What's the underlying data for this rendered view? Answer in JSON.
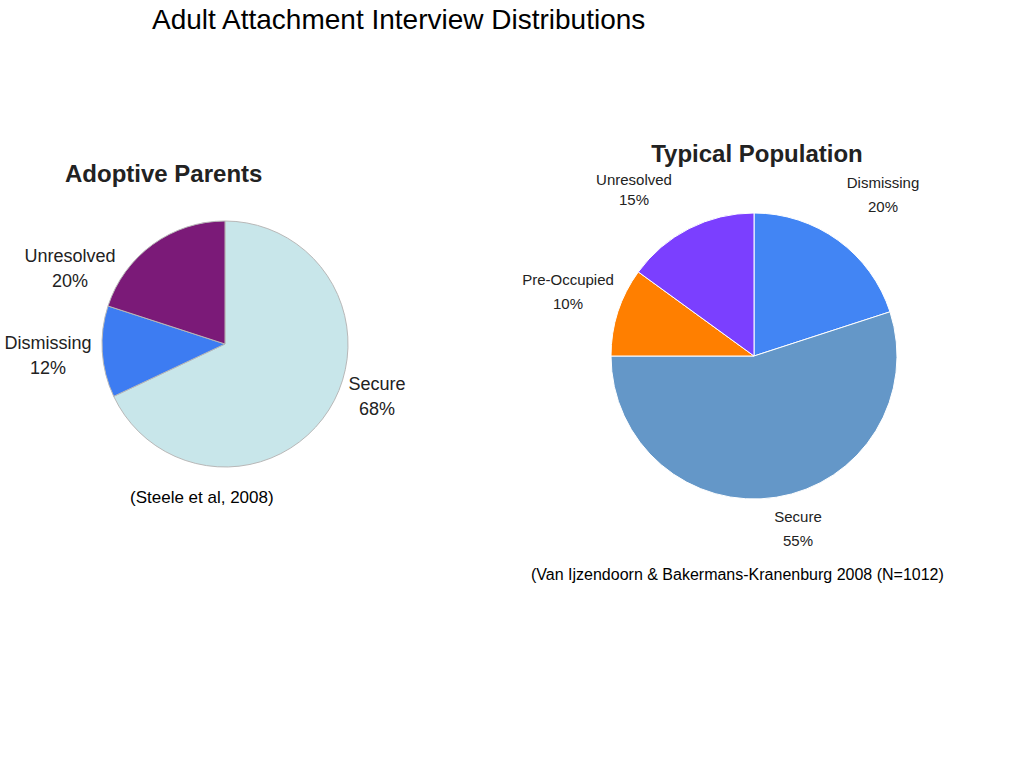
{
  "title": "Adult Attachment Interview Distributions",
  "chart_data": [
    {
      "type": "pie",
      "title": "Adoptive Parents",
      "categories": [
        "Secure",
        "Dismissing",
        "Unresolved"
      ],
      "values": [
        68,
        12,
        20
      ],
      "value_labels": [
        "68%",
        "12%",
        "20%"
      ],
      "colors": [
        "#c8e6ea",
        "#3d7cf2",
        "#7b1a78"
      ],
      "annotations": [
        "(Steele et al, 2008)"
      ]
    },
    {
      "type": "pie",
      "title": "Typical Population",
      "categories": [
        "Dismissing",
        "Secure",
        "Pre-Occupied",
        "Unresolved"
      ],
      "values": [
        20,
        55,
        10,
        15
      ],
      "value_labels": [
        "20%",
        "55%",
        "10%",
        "15%"
      ],
      "colors": [
        "#4285f4",
        "#6497c8",
        "#ff7f00",
        "#7b3fff"
      ],
      "annotations": [
        "(Van Ijzendoorn & Bakermans-Kranenburg 2008 (N=1012)"
      ]
    }
  ]
}
